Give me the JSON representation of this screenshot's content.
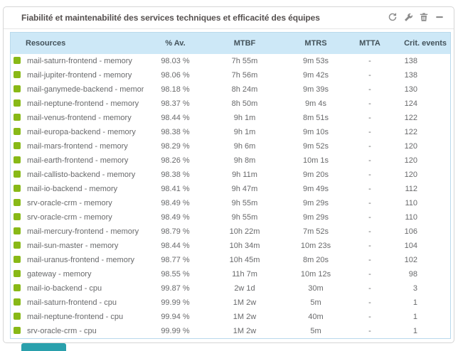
{
  "widget": {
    "title": "Fiabilité et maintenabilité des services techniques et efficacité des équipes",
    "toolbar": {
      "icons": [
        "refresh-icon",
        "wrench-icon",
        "trash-icon",
        "minus-icon"
      ]
    }
  },
  "table": {
    "columns": [
      "Resources",
      "% Av.",
      "MTBF",
      "MTRS",
      "MTTA",
      "Crit. events"
    ],
    "rows": [
      {
        "status": "ok",
        "resource": "mail-saturn-frontend - memory",
        "availability": "98.03 %",
        "mtbf": "7h 55m",
        "mtrs": "9m 53s",
        "mtta": "-",
        "crit_events": "138"
      },
      {
        "status": "ok",
        "resource": "mail-jupiter-frontend - memory",
        "availability": "98.06 %",
        "mtbf": "7h 56m",
        "mtrs": "9m 42s",
        "mtta": "-",
        "crit_events": "138"
      },
      {
        "status": "ok",
        "resource": "mail-ganymede-backend - memory",
        "availability": "98.18 %",
        "mtbf": "8h 24m",
        "mtrs": "9m 39s",
        "mtta": "-",
        "crit_events": "130"
      },
      {
        "status": "ok",
        "resource": "mail-neptune-frontend - memory",
        "availability": "98.37 %",
        "mtbf": "8h 50m",
        "mtrs": "9m 4s",
        "mtta": "-",
        "crit_events": "124"
      },
      {
        "status": "ok",
        "resource": "mail-venus-frontend - memory",
        "availability": "98.44 %",
        "mtbf": "9h 1m",
        "mtrs": "8m 51s",
        "mtta": "-",
        "crit_events": "122"
      },
      {
        "status": "ok",
        "resource": "mail-europa-backend - memory",
        "availability": "98.38 %",
        "mtbf": "9h 1m",
        "mtrs": "9m 10s",
        "mtta": "-",
        "crit_events": "122"
      },
      {
        "status": "ok",
        "resource": "mail-mars-frontend - memory",
        "availability": "98.29 %",
        "mtbf": "9h 6m",
        "mtrs": "9m 52s",
        "mtta": "-",
        "crit_events": "120"
      },
      {
        "status": "ok",
        "resource": "mail-earth-frontend - memory",
        "availability": "98.26 %",
        "mtbf": "9h 8m",
        "mtrs": "10m 1s",
        "mtta": "-",
        "crit_events": "120"
      },
      {
        "status": "ok",
        "resource": "mail-callisto-backend - memory",
        "availability": "98.38 %",
        "mtbf": "9h 11m",
        "mtrs": "9m 20s",
        "mtta": "-",
        "crit_events": "120"
      },
      {
        "status": "ok",
        "resource": "mail-io-backend - memory",
        "availability": "98.41 %",
        "mtbf": "9h 47m",
        "mtrs": "9m 49s",
        "mtta": "-",
        "crit_events": "112"
      },
      {
        "status": "ok",
        "resource": "srv-oracle-crm - memory",
        "availability": "98.49 %",
        "mtbf": "9h 55m",
        "mtrs": "9m 29s",
        "mtta": "-",
        "crit_events": "110"
      },
      {
        "status": "ok",
        "resource": "srv-oracle-crm - memory",
        "availability": "98.49 %",
        "mtbf": "9h 55m",
        "mtrs": "9m 29s",
        "mtta": "-",
        "crit_events": "110"
      },
      {
        "status": "ok",
        "resource": "mail-mercury-frontend - memory",
        "availability": "98.79 %",
        "mtbf": "10h 22m",
        "mtrs": "7m 52s",
        "mtta": "-",
        "crit_events": "106"
      },
      {
        "status": "ok",
        "resource": "mail-sun-master - memory",
        "availability": "98.44 %",
        "mtbf": "10h 34m",
        "mtrs": "10m 23s",
        "mtta": "-",
        "crit_events": "104"
      },
      {
        "status": "ok",
        "resource": "mail-uranus-frontend - memory",
        "availability": "98.77 %",
        "mtbf": "10h 45m",
        "mtrs": "8m 20s",
        "mtta": "-",
        "crit_events": "102"
      },
      {
        "status": "ok",
        "resource": "gateway - memory",
        "availability": "98.55 %",
        "mtbf": "11h 7m",
        "mtrs": "10m 12s",
        "mtta": "-",
        "crit_events": "98"
      },
      {
        "status": "ok",
        "resource": "mail-io-backend - cpu",
        "availability": "99.87 %",
        "mtbf": "2w 1d",
        "mtrs": "30m",
        "mtta": "-",
        "crit_events": "3"
      },
      {
        "status": "ok",
        "resource": "mail-saturn-frontend - cpu",
        "availability": "99.99 %",
        "mtbf": "1M 2w",
        "mtrs": "5m",
        "mtta": "-",
        "crit_events": "1"
      },
      {
        "status": "ok",
        "resource": "mail-neptune-frontend - cpu",
        "availability": "99.94 %",
        "mtbf": "1M 2w",
        "mtrs": "40m",
        "mtta": "-",
        "crit_events": "1"
      },
      {
        "status": "ok",
        "resource": "srv-oracle-crm - cpu",
        "availability": "99.99 %",
        "mtbf": "1M 2w",
        "mtrs": "5m",
        "mtta": "-",
        "crit_events": "1"
      }
    ]
  },
  "colors": {
    "status_ok": "#88B917",
    "header_bg": "#CDE8F7",
    "header_text": "#43525A",
    "table_border": "#B9D9EC",
    "row_text": "#68696B",
    "title_text": "#565150",
    "icon_gray": "#8B8B8B",
    "fragment_teal": "#2AA0AC"
  }
}
